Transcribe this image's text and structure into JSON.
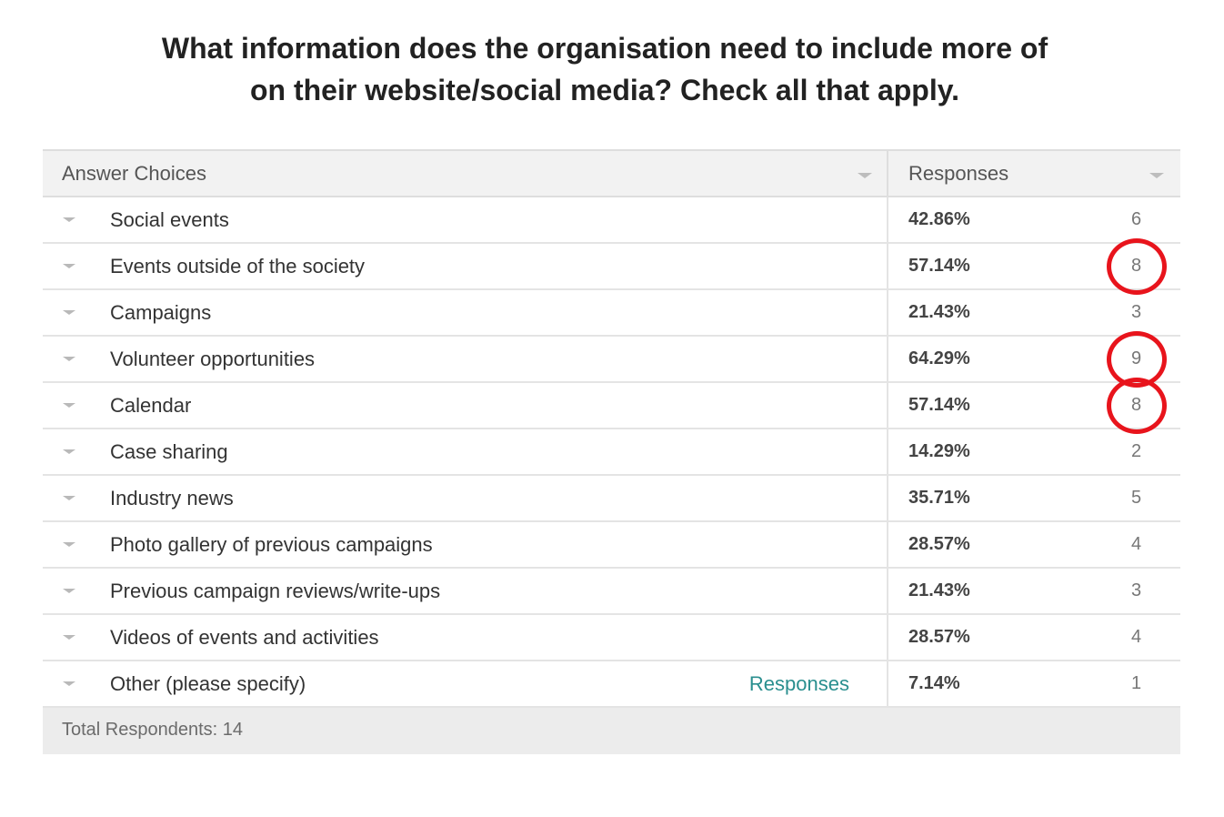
{
  "title": {
    "line1": "What information does the organisation need to include more of",
    "line2": "on their website/social media? Check all that apply."
  },
  "table": {
    "headers": {
      "choices": "Answer Choices",
      "responses": "Responses"
    },
    "rows": [
      {
        "choice": "Social events",
        "percent": "42.86%",
        "count": "6",
        "highlighted": false
      },
      {
        "choice": "Events outside of the society",
        "percent": "57.14%",
        "count": "8",
        "highlighted": true
      },
      {
        "choice": "Campaigns",
        "percent": "21.43%",
        "count": "3",
        "highlighted": false
      },
      {
        "choice": "Volunteer opportunities",
        "percent": "64.29%",
        "count": "9",
        "highlighted": true
      },
      {
        "choice": "Calendar",
        "percent": "57.14%",
        "count": "8",
        "highlighted": true
      },
      {
        "choice": "Case sharing",
        "percent": "14.29%",
        "count": "2",
        "highlighted": false
      },
      {
        "choice": "Industry news",
        "percent": "35.71%",
        "count": "5",
        "highlighted": false
      },
      {
        "choice": "Photo gallery of previous campaigns",
        "percent": "28.57%",
        "count": "4",
        "highlighted": false
      },
      {
        "choice": "Previous campaign reviews/write-ups",
        "percent": "21.43%",
        "count": "3",
        "highlighted": false
      },
      {
        "choice": "Videos of events and activities",
        "percent": "28.57%",
        "count": "4",
        "highlighted": false
      },
      {
        "choice": "Other (please specify)",
        "percent": "7.14%",
        "count": "1",
        "highlighted": false,
        "link": "Responses"
      }
    ],
    "footer": "Total Respondents: 14"
  },
  "icons": {
    "sort": "chevron-down-icon",
    "row_expand": "chevron-down-icon"
  },
  "colors": {
    "highlight": "#e8141c",
    "link": "#2a8f8f"
  }
}
